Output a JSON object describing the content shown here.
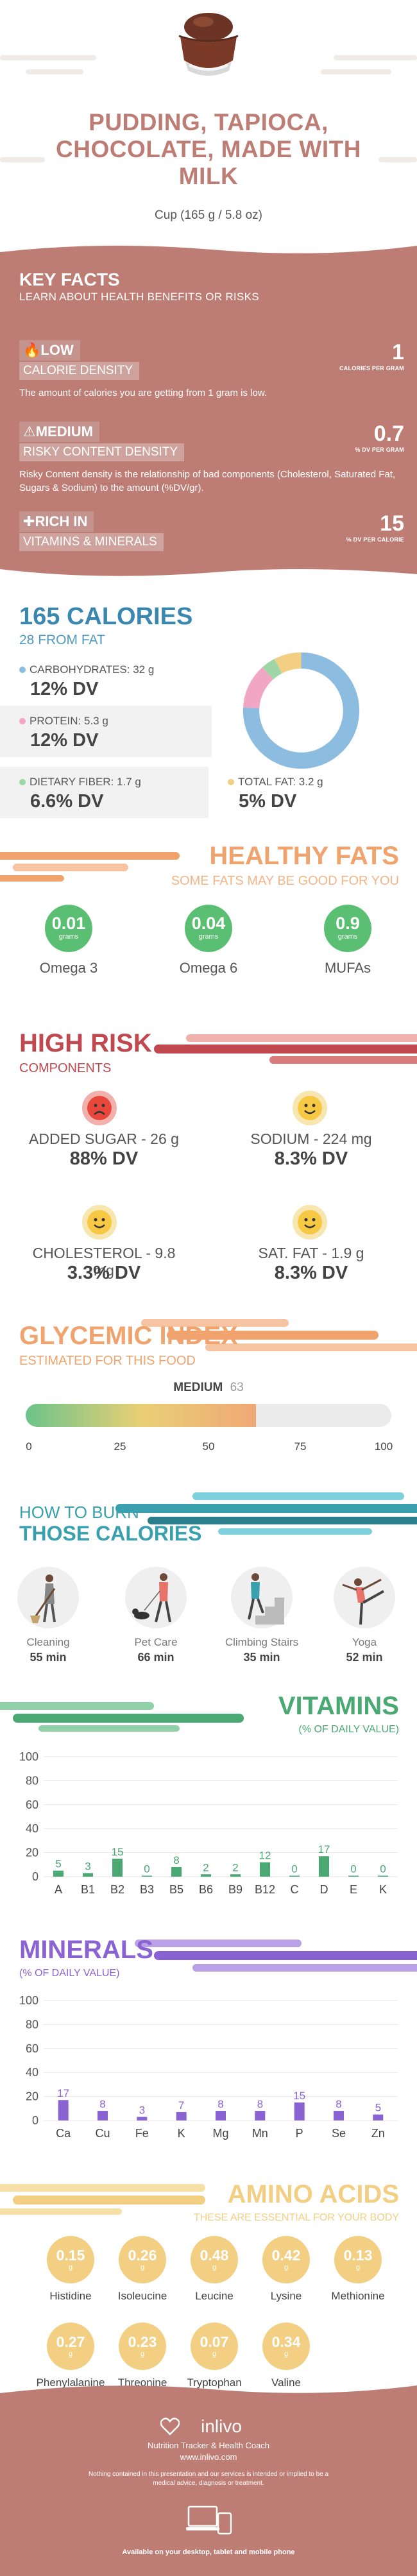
{
  "header": {
    "title": "PUDDING, TAPIOCA, CHOCOLATE, MADE WITH MILK",
    "serving": "Cup (165 g / 5.8 oz)"
  },
  "key_facts": {
    "title": "KEY FACTS",
    "subtitle": "LEARN ABOUT HEALTH BENEFITS OR RISKS",
    "items": [
      {
        "level": "LOW",
        "label": "CALORIE DENSITY",
        "value": "1",
        "unit": "CALORIES PER GRAM",
        "desc": "The amount of calories you are getting from 1 gram is low.",
        "icon": "flame-icon"
      },
      {
        "level": "MEDIUM",
        "label": "RISKY CONTENT DENSITY",
        "value": "0.7",
        "unit": "% DV PER GRAM",
        "desc": "Risky Content density is the relationship of bad components (Cholesterol, Saturated Fat, Sugars & Sodium) to the amount (%DV/gr).",
        "icon": "warning-icon"
      },
      {
        "level": "RICH  IN",
        "label": "VITAMINS & MINERALS",
        "value": "15",
        "unit": "% DV PER CALORIE",
        "desc": "",
        "icon": "pill-icon"
      }
    ]
  },
  "calories": {
    "title": "165 CALORIES",
    "subtitle": "28 FROM FAT",
    "macros": [
      {
        "name": "CARBOHYDRATES: 32 g",
        "dv": "12% DV",
        "color": "#8cbde0"
      },
      {
        "name": "PROTEIN: 5.3 g",
        "dv": "12% DV",
        "color": "#f1a7c4"
      },
      {
        "name": "DIETARY FIBER: 1.7 g",
        "dv": "6.6% DV",
        "color": "#9fd6a6"
      },
      {
        "name": "TOTAL FAT: 3.2 g",
        "dv": "5% DV",
        "color": "#f3cf84"
      }
    ],
    "donut": [
      {
        "name": "Carbohydrates",
        "value": 32,
        "color": "#8cbde0"
      },
      {
        "name": "Protein",
        "value": 5.3,
        "color": "#f1a7c4"
      },
      {
        "name": "Dietary fiber",
        "value": 1.7,
        "color": "#9fd6a6"
      },
      {
        "name": "Total fat",
        "value": 3.2,
        "color": "#f3cf84"
      }
    ]
  },
  "healthy_fats": {
    "title": "HEALTHY FATS",
    "subtitle": "SOME FATS MAY BE GOOD FOR YOU",
    "items": [
      {
        "value": "0.01",
        "unit": "grams",
        "name": "Omega 3"
      },
      {
        "value": "0.04",
        "unit": "grams",
        "name": "Omega 6"
      },
      {
        "value": "0.9",
        "unit": "grams",
        "name": "MUFAs"
      }
    ],
    "color": "#5bbf73"
  },
  "high_risk": {
    "title": "HIGH RISK",
    "subtitle": "COMPONENTS",
    "items": [
      {
        "name": "ADDED SUGAR - 26 g",
        "dv": "88% DV",
        "face": "sad-face-icon"
      },
      {
        "name": "SODIUM - 224 mg",
        "dv": "8.3% DV",
        "face": "happy-face-icon"
      },
      {
        "name": "CHOLESTEROL - 9.8 mg",
        "dv": "3.3% DV",
        "face": "happy-face-icon"
      },
      {
        "name": "SAT. FAT - 1.9 g",
        "dv": "8.3% DV",
        "face": "happy-face-icon"
      }
    ]
  },
  "glycemic": {
    "title": "GLYCEMIC INDEX",
    "subtitle": "ESTIMATED FOR THIS FOOD",
    "level": "MEDIUM",
    "value": "63",
    "value_num": 63,
    "ticks": [
      "0",
      "25",
      "50",
      "75",
      "100"
    ]
  },
  "burn": {
    "title_line1": "HOW TO BURN",
    "title_line2": "THOSE CALORIES",
    "activities": [
      {
        "name": "Cleaning",
        "minutes": "55 min"
      },
      {
        "name": "Pet Care",
        "minutes": "66 min"
      },
      {
        "name": "Climbing Stairs",
        "minutes": "35 min"
      },
      {
        "name": "Yoga",
        "minutes": "52 min"
      }
    ]
  },
  "vitamins": {
    "title": "VITAMINS",
    "subtitle": "(% OF DAILY VALUE)"
  },
  "minerals": {
    "title": "MINERALS",
    "subtitle": "(% OF DAILY VALUE)"
  },
  "chart_data": [
    {
      "type": "bar",
      "title": "VITAMINS",
      "subtitle": "(% OF DAILY VALUE)",
      "categories": [
        "A",
        "B1",
        "B2",
        "B3",
        "B5",
        "B6",
        "B9",
        "B12",
        "C",
        "D",
        "E",
        "K"
      ],
      "values": [
        5,
        3,
        15,
        0,
        8,
        2,
        2,
        12,
        0,
        17,
        0,
        0
      ],
      "ylim": [
        0,
        100
      ],
      "yticks": [
        0,
        20,
        40,
        60,
        80,
        100
      ],
      "color": "#4aa873"
    },
    {
      "type": "bar",
      "title": "MINERALS",
      "subtitle": "(% OF DAILY VALUE)",
      "categories": [
        "Ca",
        "Cu",
        "Fe",
        "K",
        "Mg",
        "Mn",
        "P",
        "Se",
        "Zn"
      ],
      "values": [
        17,
        8,
        3,
        7,
        8,
        8,
        15,
        8,
        5
      ],
      "ylim": [
        0,
        100
      ],
      "yticks": [
        0,
        20,
        40,
        60,
        80,
        100
      ],
      "color": "#8a63d2"
    }
  ],
  "amino": {
    "title": "AMINO ACIDS",
    "subtitle": "THESE ARE ESSENTIAL FOR YOUR BODY",
    "unit": "g",
    "items": [
      {
        "name": "Histidine",
        "value": "0.15"
      },
      {
        "name": "Isoleucine",
        "value": "0.26"
      },
      {
        "name": "Leucine",
        "value": "0.48"
      },
      {
        "name": "Lysine",
        "value": "0.42"
      },
      {
        "name": "Methionine",
        "value": "0.13"
      },
      {
        "name": "Phenylalanine",
        "value": "0.27"
      },
      {
        "name": "Threonine",
        "value": "0.23"
      },
      {
        "name": "Tryptophan",
        "value": "0.07"
      },
      {
        "name": "Valine",
        "value": "0.34"
      }
    ]
  },
  "footer": {
    "brand": "inlivo",
    "tagline": "Nutrition Tracker & Health Coach",
    "url": "www.inlivo.com",
    "disclaimer": "Nothing contained in this presentation and our services is intended or implied to be a medical advice, diagnosis or treatment.",
    "availability": "Available on your desktop, tablet and mobile phone"
  },
  "colors": {
    "rose": "#bd7d75",
    "orange": "#f0a36d",
    "red": "#c0484f",
    "teal": "#3aa0ae",
    "green": "#4aa873",
    "purple": "#8a63d2",
    "yellow": "#f3cf84"
  }
}
